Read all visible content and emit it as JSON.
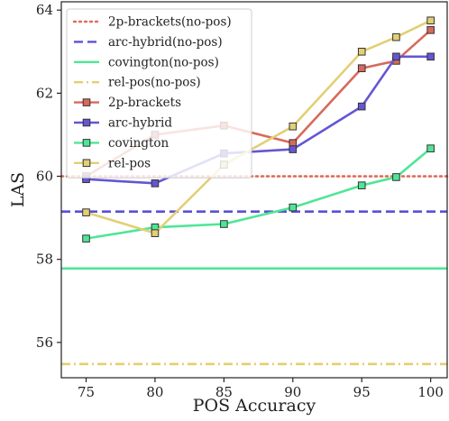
{
  "chart_data": {
    "type": "line",
    "xlabel": "POS Accuracy",
    "ylabel": "LAS",
    "xlim": [
      73.2,
      101.2
    ],
    "ylim": [
      55.15,
      64.2
    ],
    "xticks": [
      75,
      80,
      85,
      90,
      95,
      100
    ],
    "yticks": [
      56,
      58,
      60,
      62,
      64
    ],
    "grid": false,
    "legend_position": "top-left",
    "x": [
      75,
      80,
      85,
      90,
      95,
      97.5,
      100
    ],
    "series": [
      {
        "name": "2p-brackets(no-pos)",
        "kind": "hline",
        "y": 60.0,
        "color": "#e06c5a",
        "dash": "dotted"
      },
      {
        "name": "arc-hybrid(no-pos)",
        "kind": "hline",
        "y": 59.15,
        "color": "#5a50d6",
        "dash": "dashed"
      },
      {
        "name": "covington(no-pos)",
        "kind": "hline",
        "y": 57.78,
        "color": "#4ee696",
        "dash": "solid"
      },
      {
        "name": "rel-pos(no-pos)",
        "kind": "hline",
        "y": 55.48,
        "color": "#e3cf70",
        "dash": "dashdot"
      },
      {
        "name": "2p-brackets",
        "kind": "line",
        "values": [
          60.0,
          61.0,
          61.22,
          60.8,
          62.6,
          62.78,
          63.52
        ],
        "color": "#d9695c"
      },
      {
        "name": "arc-hybrid",
        "kind": "line",
        "values": [
          59.93,
          59.83,
          60.55,
          60.65,
          61.68,
          62.88,
          62.88
        ],
        "color": "#6456d4"
      },
      {
        "name": "covington",
        "kind": "line",
        "values": [
          58.5,
          58.77,
          58.85,
          59.25,
          59.78,
          59.98,
          60.67
        ],
        "color": "#4ee696"
      },
      {
        "name": "rel-pos",
        "kind": "line",
        "values": [
          59.13,
          58.63,
          60.28,
          61.2,
          63.0,
          63.35,
          63.75
        ],
        "color": "#e3cf75"
      }
    ]
  }
}
